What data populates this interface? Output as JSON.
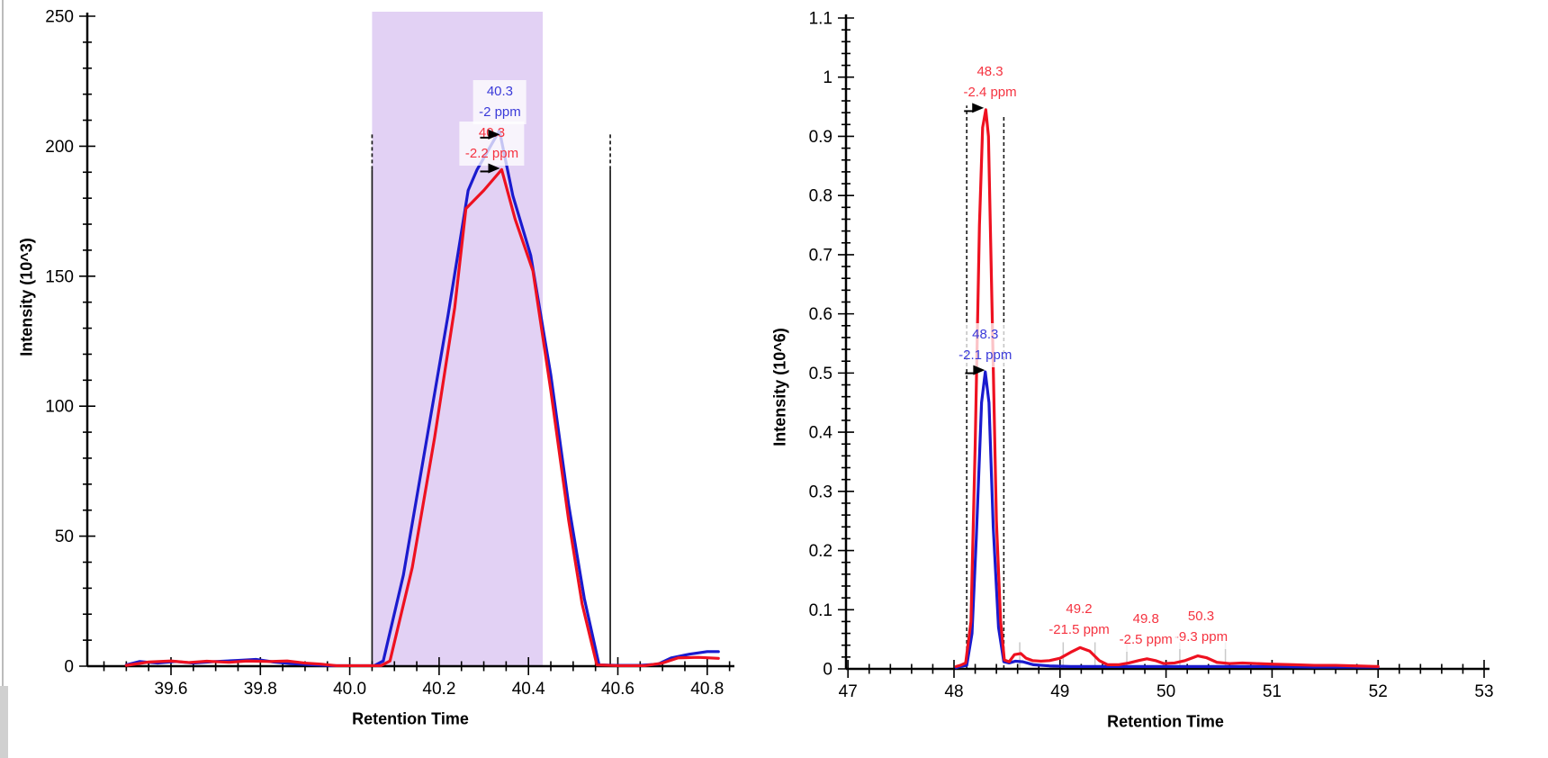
{
  "page": {
    "background": "#ffffff"
  },
  "chart_data": [
    {
      "id": "left",
      "type": "line",
      "xlabel": "Retention Time",
      "ylabel": "Intensity (10^3)",
      "xlim": [
        39.413,
        40.859
      ],
      "ylim": [
        0,
        250
      ],
      "xticks": {
        "major": [
          39.6,
          39.8,
          40.0,
          40.2,
          40.4,
          40.6,
          40.8
        ],
        "labels": [
          "39.6",
          "39.8",
          "40.0",
          "40.2",
          "40.4",
          "40.6",
          "40.8"
        ],
        "minor_step": 0.05
      },
      "yticks": {
        "major": [
          0,
          50,
          100,
          150,
          200,
          250
        ],
        "labels": [
          "0",
          "50",
          "100",
          "150",
          "200",
          "250"
        ],
        "minor_step": 10
      },
      "selection_region": {
        "x0": 40.05,
        "x1": 40.432,
        "color": "#e2d1f4"
      },
      "peak_boundaries": [
        {
          "x": 40.05,
          "solid_to": 191,
          "dash_to": 205
        },
        {
          "x": 40.583,
          "solid_to": 191,
          "dash_to": 205
        }
      ],
      "gray_markers": [],
      "series": [
        {
          "name": "blue",
          "color": "#1a1ace",
          "points": [
            [
              39.5,
              0.5
            ],
            [
              39.53,
              1.8
            ],
            [
              39.57,
              1.2
            ],
            [
              39.61,
              1.8
            ],
            [
              39.65,
              1.2
            ],
            [
              39.7,
              1.8
            ],
            [
              39.75,
              2.2
            ],
            [
              39.79,
              2.6
            ],
            [
              39.83,
              1.6
            ],
            [
              39.87,
              1.0
            ],
            [
              39.91,
              0.6
            ],
            [
              39.96,
              0.2
            ],
            [
              40.02,
              0.2
            ],
            [
              40.055,
              0.2
            ],
            [
              40.075,
              2
            ],
            [
              40.12,
              35
            ],
            [
              40.17,
              85
            ],
            [
              40.22,
              135
            ],
            [
              40.265,
              183
            ],
            [
              40.285,
              191
            ],
            [
              40.335,
              206
            ],
            [
              40.365,
              181
            ],
            [
              40.405,
              158
            ],
            [
              40.45,
              112
            ],
            [
              40.49,
              62
            ],
            [
              40.525,
              26
            ],
            [
              40.558,
              0.5
            ],
            [
              40.6,
              0.3
            ],
            [
              40.65,
              0.3
            ],
            [
              40.69,
              0.8
            ],
            [
              40.72,
              3.2
            ],
            [
              40.76,
              4.6
            ],
            [
              40.8,
              5.6
            ],
            [
              40.825,
              5.6
            ]
          ]
        },
        {
          "name": "red",
          "color": "#ee1120",
          "points": [
            [
              39.5,
              0.3
            ],
            [
              39.55,
              1.6
            ],
            [
              39.6,
              2.0
            ],
            [
              39.64,
              1.4
            ],
            [
              39.68,
              1.9
            ],
            [
              39.73,
              1.5
            ],
            [
              39.77,
              2.0
            ],
            [
              39.82,
              1.8
            ],
            [
              39.86,
              2.0
            ],
            [
              39.9,
              1.2
            ],
            [
              39.935,
              0.8
            ],
            [
              39.97,
              0.2
            ],
            [
              40.03,
              0.2
            ],
            [
              40.07,
              0.2
            ],
            [
              40.09,
              2
            ],
            [
              40.14,
              38
            ],
            [
              40.19,
              88
            ],
            [
              40.235,
              138
            ],
            [
              40.26,
              176
            ],
            [
              40.3,
              183
            ],
            [
              40.34,
              191
            ],
            [
              40.37,
              172
            ],
            [
              40.41,
              152
            ],
            [
              40.45,
              106
            ],
            [
              40.49,
              56
            ],
            [
              40.52,
              24
            ],
            [
              40.553,
              0.5
            ],
            [
              40.6,
              0.2
            ],
            [
              40.66,
              0.2
            ],
            [
              40.7,
              1.2
            ],
            [
              40.735,
              3.2
            ],
            [
              40.78,
              3.4
            ],
            [
              40.825,
              3.0
            ]
          ]
        }
      ],
      "annotations": [
        {
          "series": "red",
          "color": "#f53340",
          "lines": [
            "40.3",
            "-2.2 ppm"
          ],
          "x": 40.318,
          "y_lines": [
            205,
            197.5
          ],
          "arrow": {
            "x": 40.312,
            "y": 191.5
          }
        },
        {
          "series": "blue",
          "color": "#3a3ad9",
          "lines": [
            "40.3",
            "-2 ppm"
          ],
          "x": 40.336,
          "y_lines": [
            221,
            213
          ],
          "arrow": {
            "x": 40.312,
            "y": 204.5
          }
        }
      ]
    },
    {
      "id": "right",
      "type": "line",
      "xlabel": "Retention Time",
      "ylabel": "Intensity (10^6)",
      "xlim": [
        46.975,
        53.05
      ],
      "ylim": [
        0,
        1.1
      ],
      "xticks": {
        "major": [
          47,
          48,
          49,
          50,
          51,
          52,
          53
        ],
        "labels": [
          "47",
          "48",
          "49",
          "50",
          "51",
          "52",
          "53"
        ],
        "minor_step": 0.2
      },
      "yticks": {
        "major": [
          0,
          0.1,
          0.2,
          0.3,
          0.4,
          0.5,
          0.6,
          0.7,
          0.8,
          0.9,
          1.0,
          1.1
        ],
        "labels": [
          "0",
          "0.1",
          "0.2",
          "0.3",
          "0.4",
          "0.5",
          "0.6",
          "0.7",
          "0.8",
          "0.9",
          "1",
          "1.1"
        ],
        "minor_step": 0.02
      },
      "selection_region": null,
      "peak_boundaries": [
        {
          "x": 48.12,
          "solid_to": 0,
          "dash_to": 0.952
        },
        {
          "x": 48.47,
          "solid_to": 0,
          "dash_to": 0.935
        }
      ],
      "gray_markers": [
        {
          "x": 48.62,
          "h": 0.045
        },
        {
          "x": 49.03,
          "h": 0.045
        },
        {
          "x": 49.33,
          "h": 0.045
        },
        {
          "x": 49.63,
          "h": 0.045
        },
        {
          "x": 50.13,
          "h": 0.045
        },
        {
          "x": 50.56,
          "h": 0.045
        }
      ],
      "series": [
        {
          "name": "blue",
          "color": "#1a1ace",
          "points": [
            [
              48.02,
              0.002
            ],
            [
              48.06,
              0.004
            ],
            [
              48.12,
              0.006
            ],
            [
              48.17,
              0.06
            ],
            [
              48.21,
              0.22
            ],
            [
              48.26,
              0.45
            ],
            [
              48.295,
              0.502
            ],
            [
              48.33,
              0.45
            ],
            [
              48.37,
              0.24
            ],
            [
              48.42,
              0.07
            ],
            [
              48.47,
              0.012
            ],
            [
              48.52,
              0.01
            ],
            [
              48.58,
              0.013
            ],
            [
              48.65,
              0.012
            ],
            [
              48.75,
              0.007
            ],
            [
              48.9,
              0.005
            ],
            [
              49.1,
              0.004
            ],
            [
              49.4,
              0.004
            ],
            [
              49.8,
              0.004
            ],
            [
              50.2,
              0.004
            ],
            [
              50.6,
              0.004
            ],
            [
              51.0,
              0.004
            ],
            [
              51.4,
              0.003
            ],
            [
              51.8,
              0.003
            ],
            [
              52.0,
              0.003
            ]
          ]
        },
        {
          "name": "red",
          "color": "#ee1120",
          "points": [
            [
              48.02,
              0.004
            ],
            [
              48.06,
              0.006
            ],
            [
              48.11,
              0.01
            ],
            [
              48.16,
              0.08
            ],
            [
              48.2,
              0.38
            ],
            [
              48.24,
              0.75
            ],
            [
              48.27,
              0.915
            ],
            [
              48.3,
              0.945
            ],
            [
              48.325,
              0.9
            ],
            [
              48.36,
              0.6
            ],
            [
              48.4,
              0.25
            ],
            [
              48.44,
              0.08
            ],
            [
              48.475,
              0.015
            ],
            [
              48.52,
              0.012
            ],
            [
              48.57,
              0.024
            ],
            [
              48.63,
              0.026
            ],
            [
              48.68,
              0.018
            ],
            [
              48.74,
              0.014
            ],
            [
              48.82,
              0.013
            ],
            [
              48.9,
              0.014
            ],
            [
              49.0,
              0.018
            ],
            [
              49.1,
              0.028
            ],
            [
              49.19,
              0.036
            ],
            [
              49.28,
              0.03
            ],
            [
              49.37,
              0.014
            ],
            [
              49.45,
              0.007
            ],
            [
              49.55,
              0.007
            ],
            [
              49.65,
              0.01
            ],
            [
              49.74,
              0.014
            ],
            [
              49.82,
              0.017
            ],
            [
              49.9,
              0.014
            ],
            [
              49.98,
              0.009
            ],
            [
              50.08,
              0.01
            ],
            [
              50.18,
              0.014
            ],
            [
              50.3,
              0.022
            ],
            [
              50.38,
              0.019
            ],
            [
              50.48,
              0.011
            ],
            [
              50.6,
              0.009
            ],
            [
              50.72,
              0.01
            ],
            [
              50.85,
              0.009
            ],
            [
              51.0,
              0.008
            ],
            [
              51.2,
              0.007
            ],
            [
              51.4,
              0.006
            ],
            [
              51.6,
              0.006
            ],
            [
              51.8,
              0.005
            ],
            [
              52.0,
              0.004
            ]
          ]
        }
      ],
      "annotations": [
        {
          "series": "red",
          "color": "#f53340",
          "lines": [
            "50.3",
            "-9.3 ppm"
          ],
          "x": 50.33,
          "y_lines": [
            0.088,
            0.054
          ],
          "arrow": null
        },
        {
          "series": "red",
          "color": "#f53340",
          "lines": [
            "49.2",
            "-21.5 ppm"
          ],
          "x": 49.18,
          "y_lines": [
            0.1,
            0.066
          ],
          "arrow": null
        },
        {
          "series": "red",
          "color": "#f53340",
          "lines": [
            "49.8",
            "-2.5 ppm"
          ],
          "x": 49.81,
          "y_lines": [
            0.084,
            0.051
          ],
          "arrow": null
        },
        {
          "series": "blue",
          "color": "#3a3ad9",
          "lines": [
            "48.3",
            "-2.1 ppm"
          ],
          "x": 48.295,
          "y_lines": [
            0.565,
            0.532
          ],
          "arrow": {
            "x": 48.19,
            "y": 0.505
          }
        },
        {
          "series": "red",
          "color": "#f53340",
          "lines": [
            "48.3",
            "-2.4 ppm"
          ],
          "x": 48.34,
          "y_lines": [
            1.008,
            0.972
          ],
          "arrow": {
            "x": 48.18,
            "y": 0.948
          }
        }
      ]
    }
  ]
}
